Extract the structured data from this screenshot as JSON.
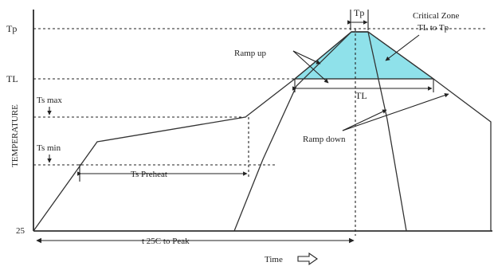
{
  "labels": {
    "tp": "Tp",
    "tl": "TL",
    "ts_max": "Ts max",
    "ts_min": "Ts min",
    "base_temp": "25",
    "y_axis": "TEMPERATURE",
    "tp_top": "Tp",
    "critical_zone_line1": "Critical Zone",
    "critical_zone_line2": "TL to Tp",
    "ramp_up": "Ramp up",
    "ramp_down": "Ramp down",
    "tl_duration": "TL",
    "ts_preheat": "Ts Preheat",
    "t25_to_peak": "t 25C to Peak",
    "time": "Time"
  },
  "colors": {
    "critical_zone_fill": "#8fe1ea"
  }
}
